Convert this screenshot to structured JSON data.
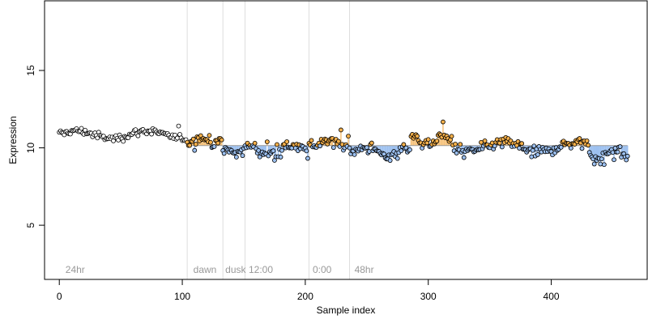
{
  "chart_data": {
    "type": "scatter",
    "xlabel": "Sample index",
    "ylabel": "Expression",
    "xlim": [
      -12,
      478
    ],
    "ylim": [
      1.5,
      19.5
    ],
    "xticks": [
      0,
      100,
      200,
      300,
      400
    ],
    "yticks": [
      5,
      10,
      15
    ],
    "baseline": 10.15,
    "grid": false,
    "legend": "none",
    "colors": {
      "point_above": "#f5b04a",
      "point_below": "#9cc0f0",
      "point_neutral": "#ffffff",
      "point_edge": "#000000",
      "bar_above": "#f6c27a",
      "bar_below": "#9cc0f0",
      "baseline": "#999999",
      "vline": "#dddddd",
      "annotation": "#999999"
    },
    "region_boundaries": [
      104,
      133,
      151,
      203,
      236
    ],
    "annotations": [
      {
        "x": 3,
        "text": "24hr"
      },
      {
        "x": 107,
        "text": "dawn"
      },
      {
        "x": 133,
        "text": "dusk"
      },
      {
        "x": 152,
        "text": "12:00"
      },
      {
        "x": 204,
        "text": "0:00"
      },
      {
        "x": 238,
        "text": "48hr"
      }
    ],
    "segments": [
      {
        "x_start": 0,
        "x_end": 103,
        "mean": 10.85,
        "amp": 0.25,
        "noise": 0.22,
        "colored": false
      },
      {
        "x_start": 104,
        "x_end": 132,
        "mean": 10.45,
        "amp": 0.2,
        "noise": 0.25,
        "colored": true
      },
      {
        "x_start": 133,
        "x_end": 150,
        "mean": 9.75,
        "amp": 0.15,
        "noise": 0.3,
        "colored": true
      },
      {
        "x_start": 151,
        "x_end": 202,
        "mean": 9.85,
        "amp": 0.25,
        "noise": 0.35,
        "colored": true
      },
      {
        "x_start": 203,
        "x_end": 235,
        "mean": 10.35,
        "amp": 0.25,
        "noise": 0.3,
        "colored": true
      },
      {
        "x_start": 236,
        "x_end": 285,
        "mean": 9.75,
        "amp": 0.3,
        "noise": 0.35,
        "colored": true
      },
      {
        "x_start": 286,
        "x_end": 320,
        "mean": 10.5,
        "amp": 0.25,
        "noise": 0.3,
        "colored": true
      },
      {
        "x_start": 321,
        "x_end": 430,
        "mean": 10.05,
        "amp": 0.3,
        "noise": 0.33,
        "colored": true
      },
      {
        "x_start": 431,
        "x_end": 462,
        "mean": 9.6,
        "amp": 0.35,
        "noise": 0.38,
        "colored": true
      }
    ]
  }
}
